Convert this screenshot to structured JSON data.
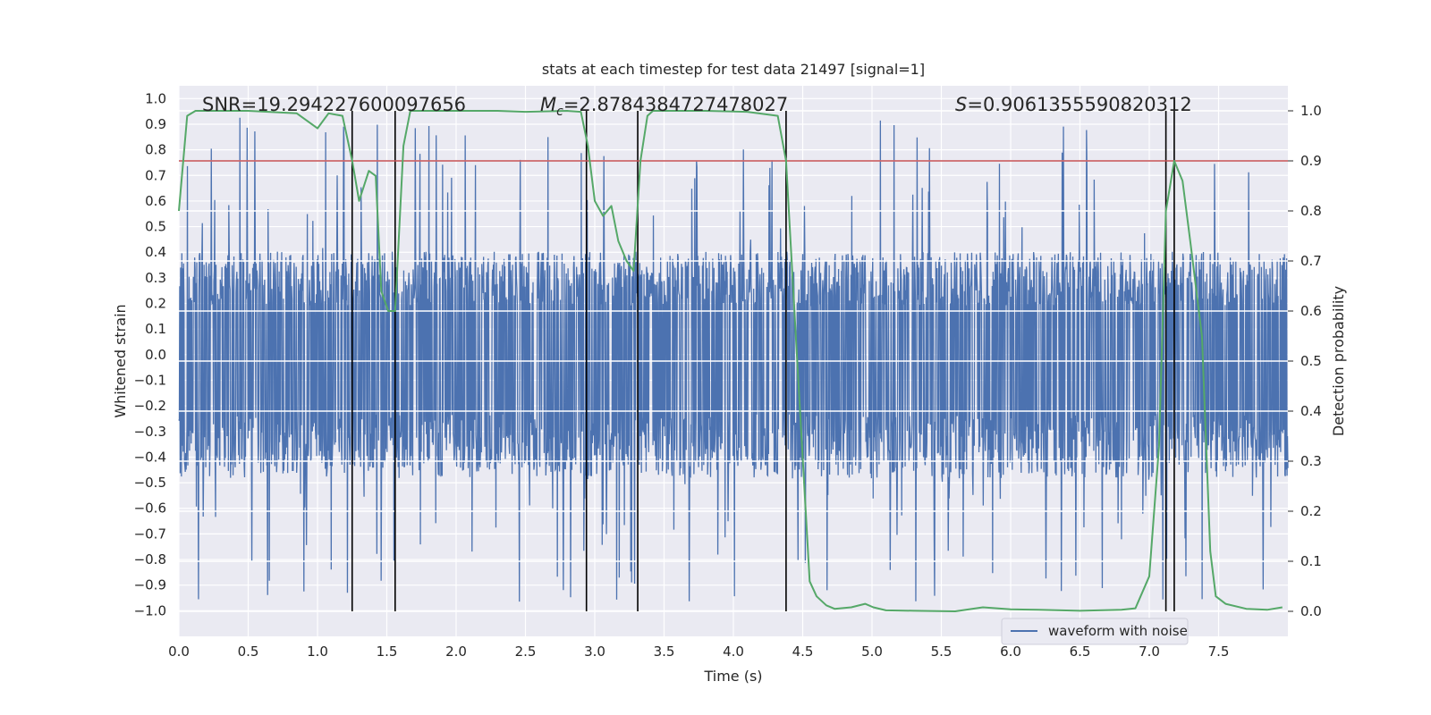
{
  "chart_data": {
    "type": "line",
    "title": "stats at each timestep for test data 21497 [signal=1]",
    "xlabel": "Time (s)",
    "ylabel": "Whitened strain",
    "y2label": "Detection probability",
    "xlim": [
      0.0,
      8.0
    ],
    "ylim": [
      -1.1,
      1.05
    ],
    "y2lim": [
      -0.05,
      1.05
    ],
    "xticks": [
      "0.0",
      "0.5",
      "1.0",
      "1.5",
      "2.0",
      "2.5",
      "3.0",
      "3.5",
      "4.0",
      "4.5",
      "5.0",
      "5.5",
      "6.0",
      "6.5",
      "7.0",
      "7.5"
    ],
    "yticks": [
      "1.0",
      "0.9",
      "0.8",
      "0.7",
      "0.6",
      "0.5",
      "0.4",
      "0.3",
      "0.2",
      "0.1",
      "0.0",
      "-0.1",
      "-0.2",
      "-0.3",
      "-0.4",
      "-0.5",
      "-0.6",
      "-0.7",
      "-0.8",
      "-0.9",
      "-1.0"
    ],
    "y2ticks": [
      "1.0",
      "0.9",
      "0.8",
      "0.7",
      "0.6",
      "0.5",
      "0.4",
      "0.3",
      "0.2",
      "0.1",
      "0.0"
    ],
    "annotations": {
      "snr": "SNR=19.294227600097656",
      "mc_symbol": "M",
      "mc_sub": "c",
      "mc_value": "=2.8784384727478027",
      "s_symbol": "S",
      "s_value": "=0.9061355590820312"
    },
    "legend": {
      "label": "waveform with noise",
      "placement": "lower-right"
    },
    "threshold_probability": 0.9,
    "threshold_color": "#c44e52",
    "vertical_markers_s": [
      1.25,
      1.56,
      2.94,
      3.31,
      4.38,
      7.12,
      7.18
    ],
    "waveform": {
      "name": "waveform with noise",
      "color": "#4c72b0",
      "t_range": [
        0.0,
        8.0
      ],
      "envelope": {
        "body_hi": 0.35,
        "body_lo": -0.42,
        "tall_hi": 0.93,
        "tall_lo": -1.0
      }
    },
    "detection_probability": {
      "name": "detection probability",
      "color": "#55a868",
      "t": [
        0.0,
        0.06,
        0.12,
        0.2,
        0.5,
        0.85,
        1.0,
        1.08,
        1.18,
        1.25,
        1.3,
        1.37,
        1.42,
        1.46,
        1.51,
        1.56,
        1.62,
        1.67,
        1.8,
        2.0,
        2.3,
        2.5,
        2.8,
        2.9,
        2.95,
        3.0,
        3.06,
        3.12,
        3.17,
        3.23,
        3.28,
        3.33,
        3.38,
        3.42,
        3.5,
        3.8,
        4.1,
        4.32,
        4.38,
        4.45,
        4.55,
        4.6,
        4.67,
        4.73,
        4.85,
        4.95,
        5.01,
        5.1,
        5.3,
        5.6,
        5.8,
        6.0,
        6.2,
        6.5,
        6.8,
        6.9,
        7.0,
        7.07,
        7.12,
        7.18,
        7.24,
        7.3,
        7.38,
        7.44,
        7.48,
        7.55,
        7.7,
        7.85,
        7.96
      ],
      "p": [
        0.8,
        0.99,
        1.0,
        1.0,
        1.0,
        0.995,
        0.965,
        0.995,
        0.99,
        0.9,
        0.82,
        0.88,
        0.87,
        0.64,
        0.6,
        0.6,
        0.93,
        1.0,
        1.0,
        1.0,
        1.0,
        0.998,
        1.0,
        0.998,
        0.93,
        0.82,
        0.79,
        0.81,
        0.74,
        0.7,
        0.68,
        0.9,
        0.99,
        1.0,
        1.0,
        1.0,
        0.998,
        0.99,
        0.9,
        0.55,
        0.06,
        0.03,
        0.012,
        0.005,
        0.008,
        0.015,
        0.008,
        0.002,
        0.001,
        0.0,
        0.008,
        0.004,
        0.003,
        0.001,
        0.003,
        0.006,
        0.07,
        0.33,
        0.8,
        0.9,
        0.86,
        0.73,
        0.55,
        0.12,
        0.03,
        0.015,
        0.005,
        0.003,
        0.008
      ]
    }
  }
}
